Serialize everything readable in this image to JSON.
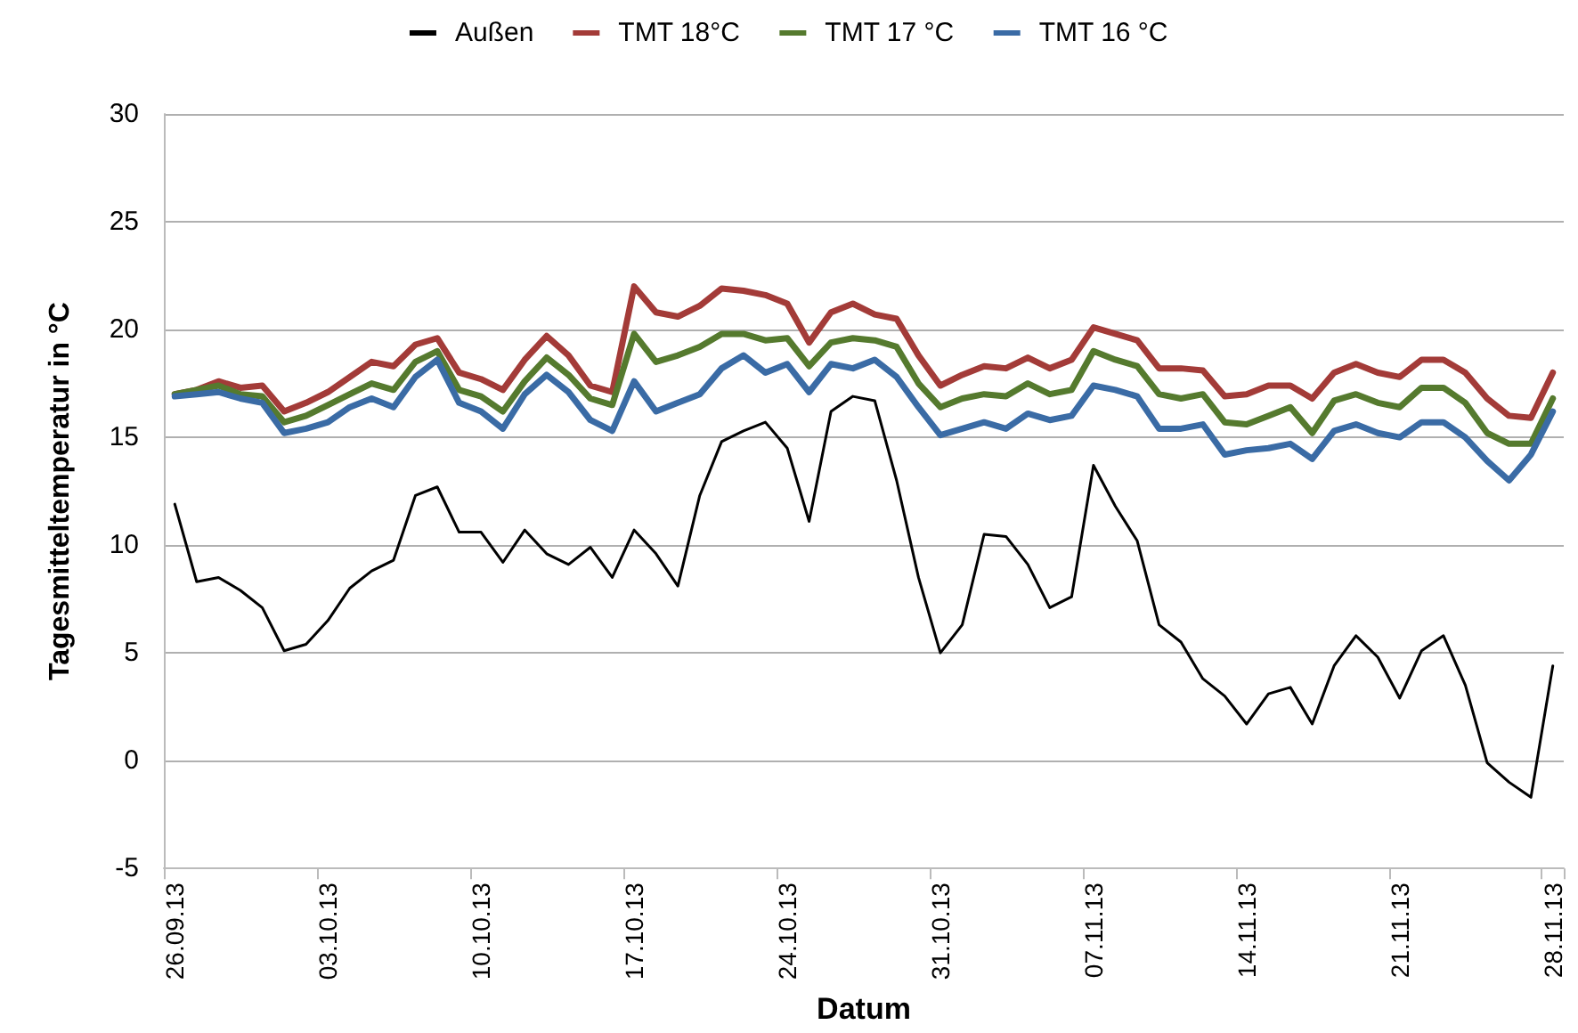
{
  "chart_data": {
    "type": "line",
    "xlabel": "Datum",
    "ylabel": "Tagesmitteltemperatur in °C",
    "categories": [
      "26.09.13",
      null,
      null,
      null,
      null,
      null,
      null,
      "03.10.13",
      null,
      null,
      null,
      null,
      null,
      null,
      "10.10.13",
      null,
      null,
      null,
      null,
      null,
      null,
      "17.10.13",
      null,
      null,
      null,
      null,
      null,
      null,
      "24.10.13",
      null,
      null,
      null,
      null,
      null,
      null,
      "31.10.13",
      null,
      null,
      null,
      null,
      null,
      null,
      "07.11.13",
      null,
      null,
      null,
      null,
      null,
      null,
      "14.11.13",
      null,
      null,
      null,
      null,
      null,
      null,
      "21.11.13",
      null,
      null,
      null,
      null,
      null,
      null,
      "28.11.13"
    ],
    "series": [
      {
        "name": "Außen",
        "color": "#000000",
        "values": [
          11.9,
          8.3,
          8.5,
          7.9,
          7.1,
          5.1,
          5.4,
          6.5,
          8.0,
          8.8,
          9.3,
          12.3,
          12.7,
          10.6,
          10.6,
          9.2,
          10.7,
          9.6,
          9.1,
          9.9,
          8.5,
          10.7,
          9.6,
          8.1,
          12.3,
          14.8,
          15.3,
          15.7,
          14.5,
          11.1,
          16.2,
          16.9,
          16.7,
          13.0,
          8.5,
          5.0,
          6.3,
          10.5,
          10.4,
          9.1,
          7.1,
          7.6,
          13.7,
          11.8,
          10.2,
          6.3,
          5.5,
          3.8,
          3.0,
          1.7,
          3.1,
          3.4,
          1.7,
          4.4,
          5.8,
          4.8,
          2.9,
          5.1,
          5.8,
          3.5,
          -0.1,
          -1.0,
          -1.7,
          4.4
        ]
      },
      {
        "name": "TMT 18°C",
        "color": "#a33b38",
        "values": [
          17.0,
          17.2,
          17.6,
          17.3,
          17.4,
          16.2,
          16.6,
          17.1,
          17.8,
          18.5,
          18.3,
          19.3,
          19.6,
          18.0,
          17.7,
          17.2,
          18.6,
          19.7,
          18.8,
          17.4,
          17.1,
          22.0,
          20.8,
          20.6,
          21.1,
          21.9,
          21.8,
          21.6,
          21.2,
          19.4,
          20.8,
          21.2,
          20.7,
          20.5,
          18.8,
          17.4,
          17.9,
          18.3,
          18.2,
          18.7,
          18.2,
          18.6,
          20.1,
          19.8,
          19.5,
          18.2,
          18.2,
          18.1,
          16.9,
          17.0,
          17.4,
          17.4,
          16.8,
          18.0,
          18.4,
          18.0,
          17.8,
          18.6,
          18.6,
          18.0,
          16.8,
          16.0,
          15.9,
          18.0
        ]
      },
      {
        "name": "TMT 17 °C",
        "color": "#557a2e",
        "values": [
          17.0,
          17.2,
          17.4,
          17.0,
          16.9,
          15.7,
          16.0,
          16.5,
          17.0,
          17.5,
          17.2,
          18.5,
          19.0,
          17.2,
          16.9,
          16.2,
          17.6,
          18.7,
          17.9,
          16.8,
          16.5,
          19.8,
          18.5,
          18.8,
          19.2,
          19.8,
          19.8,
          19.5,
          19.6,
          18.3,
          19.4,
          19.6,
          19.5,
          19.2,
          17.5,
          16.4,
          16.8,
          17.0,
          16.9,
          17.5,
          17.0,
          17.2,
          19.0,
          18.6,
          18.3,
          17.0,
          16.8,
          17.0,
          15.7,
          15.6,
          16.0,
          16.4,
          15.2,
          16.7,
          17.0,
          16.6,
          16.4,
          17.3,
          17.3,
          16.6,
          15.2,
          14.7,
          14.7,
          16.8
        ]
      },
      {
        "name": "TMT 16 °C",
        "color": "#3a6ba5",
        "values": [
          16.9,
          17.0,
          17.1,
          16.8,
          16.6,
          15.2,
          15.4,
          15.7,
          16.4,
          16.8,
          16.4,
          17.8,
          18.6,
          16.6,
          16.2,
          15.4,
          17.0,
          17.9,
          17.1,
          15.8,
          15.3,
          17.6,
          16.2,
          16.6,
          17.0,
          18.2,
          18.8,
          18.0,
          18.4,
          17.1,
          18.4,
          18.2,
          18.6,
          17.8,
          16.4,
          15.1,
          15.4,
          15.7,
          15.4,
          16.1,
          15.8,
          16.0,
          17.4,
          17.2,
          16.9,
          15.4,
          15.4,
          15.6,
          14.2,
          14.4,
          14.5,
          14.7,
          14.0,
          15.3,
          15.6,
          15.2,
          15.0,
          15.7,
          15.7,
          15.0,
          13.9,
          13.0,
          14.2,
          16.2
        ]
      }
    ],
    "ylim": [
      -5,
      30
    ],
    "yticks": [
      -5,
      0,
      5,
      10,
      15,
      20,
      25,
      30
    ],
    "grid": "y",
    "legend": "top",
    "marker": "none",
    "line_style": "solid"
  }
}
